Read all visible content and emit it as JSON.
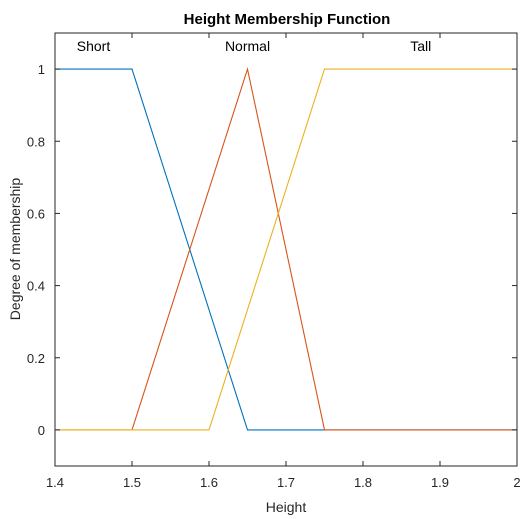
{
  "chart_data": {
    "type": "line",
    "title": "Height Membership Function",
    "xlabel": "Height",
    "ylabel": "Degree of membership",
    "xlim": [
      1.4,
      2.0
    ],
    "ylim": [
      -0.1,
      1.1
    ],
    "xticks": [
      "1.4",
      "1.5",
      "1.6",
      "1.7",
      "1.8",
      "1.9",
      "2"
    ],
    "xtick_values": [
      1.4,
      1.5,
      1.6,
      1.7,
      1.8,
      1.9,
      2.0
    ],
    "yticks": [
      "0",
      "0.2",
      "0.4",
      "0.6",
      "0.8",
      "1"
    ],
    "ytick_values": [
      0,
      0.2,
      0.4,
      0.6,
      0.8,
      1.0
    ],
    "grid": false,
    "series": [
      {
        "name": "Short",
        "color": "#0072BD",
        "x": [
          1.4,
          1.5,
          1.65,
          2.0
        ],
        "y": [
          1,
          1,
          0,
          0
        ],
        "label_x": 1.45
      },
      {
        "name": "Normal",
        "color": "#D95319",
        "x": [
          1.4,
          1.5,
          1.65,
          1.75,
          2.0
        ],
        "y": [
          0,
          0,
          1,
          0,
          0
        ],
        "label_x": 1.65
      },
      {
        "name": "Tall",
        "color": "#EDB120",
        "x": [
          1.4,
          1.6,
          1.75,
          2.0
        ],
        "y": [
          0,
          0,
          1,
          1
        ],
        "label_x": 1.875
      }
    ]
  }
}
